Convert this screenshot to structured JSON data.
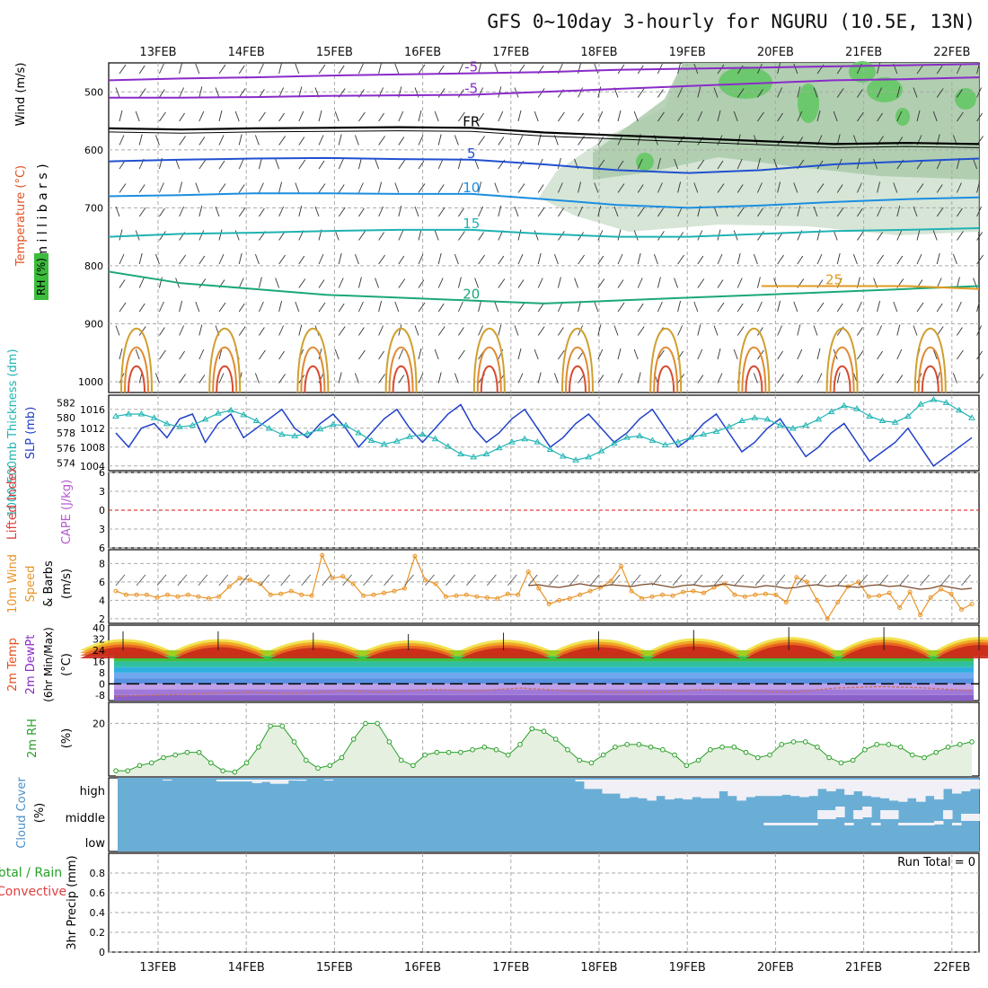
{
  "title": "GFS 0~10day 3-hourly for NGURU (10.5E, 13N)",
  "chart_data": {
    "type": "line",
    "dates": [
      "13FEB",
      "14FEB",
      "15FEB",
      "16FEB",
      "17FEB",
      "18FEB",
      "19FEB",
      "20FEB",
      "21FEB",
      "22FEB"
    ],
    "run_total_label": "Run Total = 0",
    "colors": {
      "temp_contour": "#1f8cdc",
      "rh": "#3cbc3c",
      "freezing": "#000000",
      "slp": "#2040c8",
      "thickness": "#20b4b4",
      "wind10": "#e89428",
      "rh2m": "#28a028",
      "cloud": "#6aaed6",
      "dewpoint_dash": "#c87060"
    },
    "panels": {
      "upper": {
        "ylabel_parts": [
          "RH (%)",
          "Temperature (°C)",
          "Wind (m/s)"
        ],
        "ylabel_units": "( m i l l i b a r s )",
        "yticks": [
          500,
          600,
          700,
          800,
          900,
          1000
        ],
        "ylim": [
          450,
          1000
        ],
        "contours": [
          {
            "label": "-5",
            "values": [
              510,
              510,
              509,
              507,
              506,
              505,
              500,
              495,
              490,
              485,
              480,
              478,
              475
            ]
          },
          {
            "label": "-5",
            "values": [
              480,
              477,
              475,
              472,
              470,
              468,
              466,
              462,
              460,
              458,
              456,
              454,
              452
            ]
          },
          {
            "label": "FR",
            "values": [
              563,
              565,
              563,
              562,
              561,
              562,
              570,
              575,
              580,
              585,
              590,
              588,
              590
            ]
          },
          {
            "label": "5",
            "values": [
              620,
              617,
              615,
              614,
              616,
              617,
              625,
              635,
              640,
              635,
              625,
              620,
              615
            ]
          },
          {
            "label": "10",
            "values": [
              680,
              678,
              675,
              675,
              676,
              676,
              685,
              695,
              700,
              696,
              690,
              685,
              682
            ]
          },
          {
            "label": "15",
            "values": [
              750,
              745,
              743,
              740,
              738,
              738,
              745,
              750,
              750,
              745,
              740,
              738,
              735
            ]
          },
          {
            "label": "20",
            "values": [
              810,
              830,
              840,
              850,
              855,
              860,
              865,
              860,
              855,
              850,
              845,
              840,
              835
            ]
          },
          {
            "label": "25",
            "values": [
              null,
              null,
              null,
              null,
              null,
              null,
              null,
              null,
              null,
              835,
              835,
              835,
              840
            ]
          }
        ]
      },
      "pressure": {
        "ylabel_left": "1000-500mb Thickness (dm)",
        "ylabel_right": "SLP (mb)",
        "left_ticks": [
          574,
          576,
          578,
          580,
          582
        ],
        "right_ticks": [
          1004,
          1008,
          1012,
          1016
        ],
        "slp": [
          1011,
          1008,
          1012,
          1013,
          1010,
          1014,
          1015,
          1009,
          1013,
          1015,
          1010,
          1012,
          1014,
          1016,
          1012,
          1010,
          1013,
          1015,
          1012,
          1008,
          1011,
          1014,
          1016,
          1012,
          1009,
          1012,
          1015,
          1017,
          1012,
          1009,
          1011,
          1014,
          1016,
          1012,
          1008,
          1010,
          1013,
          1015,
          1012,
          1009,
          1011,
          1014,
          1016,
          1012,
          1008,
          1010,
          1013,
          1015,
          1011,
          1007,
          1009,
          1012,
          1014,
          1010,
          1006,
          1008,
          1011,
          1013,
          1009,
          1005,
          1007,
          1009,
          1012,
          1008,
          1004,
          1006,
          1008,
          1010
        ],
        "thickness": [
          580.2,
          580.5,
          580.5,
          580.0,
          579.2,
          578.8,
          579.0,
          579.8,
          580.6,
          581.0,
          580.4,
          579.6,
          578.6,
          577.8,
          577.6,
          577.9,
          578.5,
          579.1,
          579.0,
          578.0,
          577.0,
          576.5,
          576.9,
          577.5,
          577.8,
          577.2,
          576.2,
          575.2,
          574.8,
          575.2,
          576.0,
          576.8,
          577.2,
          576.8,
          575.8,
          574.9,
          574.4,
          574.8,
          575.6,
          576.6,
          577.4,
          577.6,
          577.0,
          576.4,
          576.8,
          577.4,
          577.8,
          578.2,
          578.8,
          579.6,
          580.0,
          579.8,
          579.0,
          578.6,
          579.0,
          579.8,
          580.8,
          581.6,
          581.2,
          580.2,
          579.6,
          579.4,
          580.2,
          581.8,
          582.4,
          582.0,
          581.0,
          580.0
        ]
      },
      "instability": {
        "ylabel_left": "Lifted Index",
        "ylabel_right": "CAPE (J/kg)",
        "yticks": [
          -6,
          -3,
          0,
          3,
          6
        ],
        "lifted_index": 0
      },
      "wind10": {
        "ylabel": "10m Wind Speed & Barbs (m/s)",
        "yticks": [
          2,
          4,
          6,
          8
        ],
        "values": [
          5.0,
          4.6,
          4.6,
          4.6,
          4.3,
          4.6,
          4.4,
          4.6,
          4.4,
          4.2,
          4.4,
          5.5,
          6.4,
          6.2,
          5.8,
          4.6,
          4.7,
          5.0,
          4.6,
          4.5,
          8.9,
          6.4,
          6.6,
          5.8,
          4.5,
          4.6,
          4.8,
          5.0,
          5.3,
          8.8,
          6.2,
          5.8,
          4.4,
          4.5,
          4.6,
          4.4,
          4.3,
          4.2,
          4.7,
          4.6,
          7.1,
          5.3,
          3.6,
          4.0,
          4.2,
          4.6,
          5.0,
          5.4,
          6.1,
          7.7,
          5.0,
          4.2,
          4.4,
          4.6,
          4.5,
          4.9,
          5.0,
          4.8,
          5.4,
          5.8,
          4.6,
          4.4,
          4.6,
          4.7,
          4.6,
          3.8,
          6.5,
          6.0,
          4.0,
          2.0,
          3.8,
          5.5,
          6.0,
          4.4,
          4.5,
          4.8,
          3.2,
          4.9,
          2.4,
          4.3,
          5.2,
          4.7,
          3.0,
          3.6
        ],
        "brown_start": 40,
        "brown": [
          5.6,
          5.7,
          5.5,
          5.4,
          5.6,
          5.8,
          5.6,
          5.5,
          5.7,
          5.6,
          5.5,
          5.7,
          5.8,
          5.6,
          5.4,
          5.6,
          5.7,
          5.5,
          5.6,
          5.8,
          5.6,
          5.5,
          5.4,
          5.6,
          5.5,
          5.3,
          5.4,
          5.6,
          5.7,
          5.5,
          5.6,
          5.5,
          5.4,
          5.6,
          5.7,
          5.5,
          5.6,
          5.4,
          5.2,
          5.3,
          5.6,
          5.4,
          5.2,
          5.3
        ]
      },
      "temp2m": {
        "ylabel": "2m Temp 2m DewPt (6hr Min/Max) (°C)",
        "yticks": [
          -8,
          0,
          8,
          16,
          24,
          32,
          40
        ],
        "min_temp": 20,
        "max_temp": [
          35,
          35,
          34,
          33,
          34,
          35,
          36,
          38,
          38,
          38
        ],
        "dewpoint": [
          -9,
          -8,
          -7,
          -6,
          -7,
          -5,
          -6,
          -4,
          -5,
          -3,
          -5,
          -6,
          -6,
          -4,
          -5,
          -6,
          -3,
          -2,
          -3,
          -5
        ]
      },
      "rh2m": {
        "ylabel": "2m RH (%)",
        "yticks": [
          20
        ],
        "values": [
          2,
          2,
          4,
          5,
          7,
          8,
          9,
          9,
          5,
          2,
          1.5,
          5,
          11,
          19,
          19,
          13,
          6,
          3,
          4,
          7,
          14,
          20,
          20,
          13,
          6,
          4,
          8,
          9,
          9,
          9,
          10,
          11,
          10,
          8,
          12,
          18,
          17,
          14,
          10,
          6,
          5,
          8,
          11,
          12,
          12,
          11,
          10,
          8,
          4,
          6,
          10,
          11,
          11,
          9,
          7,
          8,
          12,
          13,
          13,
          11,
          7,
          5,
          6,
          10,
          12,
          12,
          11,
          8,
          7,
          9,
          11,
          12,
          13
        ]
      },
      "cloud": {
        "ylabel": "Cloud Cover (%)",
        "yticks": [
          "high",
          "middle",
          "low"
        ],
        "high": [
          0.98,
          0.98,
          0.98,
          0.98,
          0.98,
          0.96,
          0.98,
          0.98,
          0.98,
          0.98,
          0.98,
          0.92,
          0.92,
          0.92,
          0.92,
          0.85,
          0.9,
          0.82,
          0.82,
          0.96,
          0.95,
          0.98,
          0.98,
          0.96,
          0.98,
          0.98,
          0.98,
          0.98,
          0.98,
          0.98,
          0.98,
          0.98,
          0.98,
          0.98,
          0.98,
          0.97,
          0.98,
          0.98,
          0.98,
          0.98,
          0.98,
          0.98,
          0.98,
          0.98,
          0.98,
          0.98,
          0.98,
          0.98,
          0.98,
          0.98,
          0.98,
          0.92,
          0.6,
          0.6,
          0.4,
          0.4,
          0.2,
          0.25,
          0.2,
          0.1,
          0.3,
          0.15,
          0.2,
          0.15,
          0.25,
          0.2,
          0.2,
          0.5,
          0.3,
          0.1,
          0.25,
          0.3,
          0.3,
          0.3,
          0.35,
          0.3,
          0.25,
          0.3,
          0.6,
          0.5,
          0.6,
          0.35,
          0.5,
          0.3,
          0.25,
          0.2,
          0.1,
          0.05,
          0.2,
          0.05,
          0.3,
          0.15,
          0.6,
          0.4,
          0.5,
          0.6
        ],
        "middle": [
          0,
          0,
          0,
          0,
          0,
          0,
          0,
          0,
          0,
          0,
          0,
          0,
          0,
          0,
          0,
          0,
          0,
          0,
          0,
          0,
          0,
          0,
          0,
          0,
          0,
          0,
          0,
          0,
          0,
          0,
          0,
          0,
          0,
          0,
          0,
          0,
          0,
          0,
          0,
          0,
          0,
          0,
          0,
          0,
          0,
          0,
          0,
          0,
          0,
          0,
          0,
          0,
          0,
          0,
          0,
          0,
          0,
          0,
          0,
          0,
          0,
          0,
          0,
          0,
          0,
          0,
          0,
          0,
          0,
          0,
          0,
          0,
          0.05,
          0.05,
          0.05,
          0.05,
          0.05,
          0.05,
          0.4,
          0.4,
          0.5,
          0.05,
          0.4,
          0.5,
          0.05,
          0.4,
          0.4,
          0.05,
          0.05,
          0.05,
          0.05,
          0.1,
          0.4,
          0.05,
          0.3,
          0.3
        ]
      },
      "precip": {
        "ylabel_left": "Total / Rain",
        "ylabel_left2": "Convective",
        "ylabel": "3hr Precip (mm)",
        "yticks": [
          0,
          0.2,
          0.4,
          0.6,
          0.8
        ],
        "values": []
      }
    }
  }
}
